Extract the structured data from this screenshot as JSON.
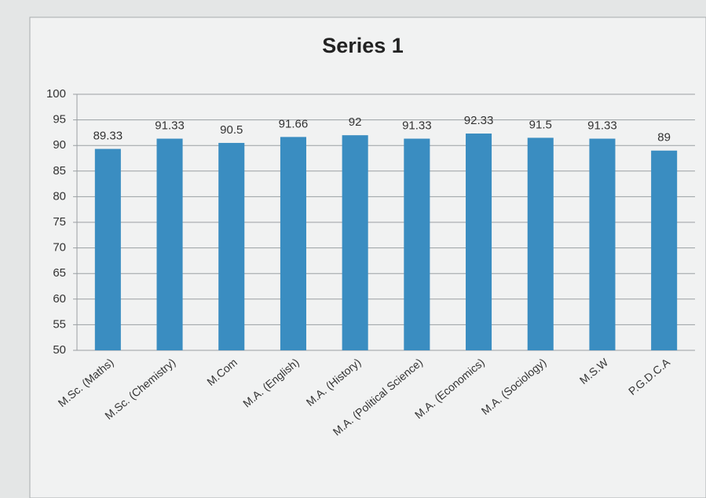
{
  "chart_data": {
    "type": "bar",
    "title": "Series 1",
    "categories": [
      "M.Sc. (Maths)",
      "M.Sc. (Chemistry)",
      "M.Com",
      "M.A. (English)",
      "M.A. (History)",
      "M.A. (Political Science)",
      "M.A. (Economics)",
      "M.A. (Sociology)",
      "M.S.W",
      "P.G.D.C.A"
    ],
    "values": [
      89.33,
      91.33,
      90.5,
      91.66,
      92,
      91.33,
      92.33,
      91.5,
      91.33,
      89
    ],
    "color": "#3a8dc1",
    "ylim": [
      50,
      100
    ],
    "yticks": [
      50,
      55,
      60,
      65,
      70,
      75,
      80,
      85,
      90,
      95,
      100
    ],
    "grid": true
  }
}
